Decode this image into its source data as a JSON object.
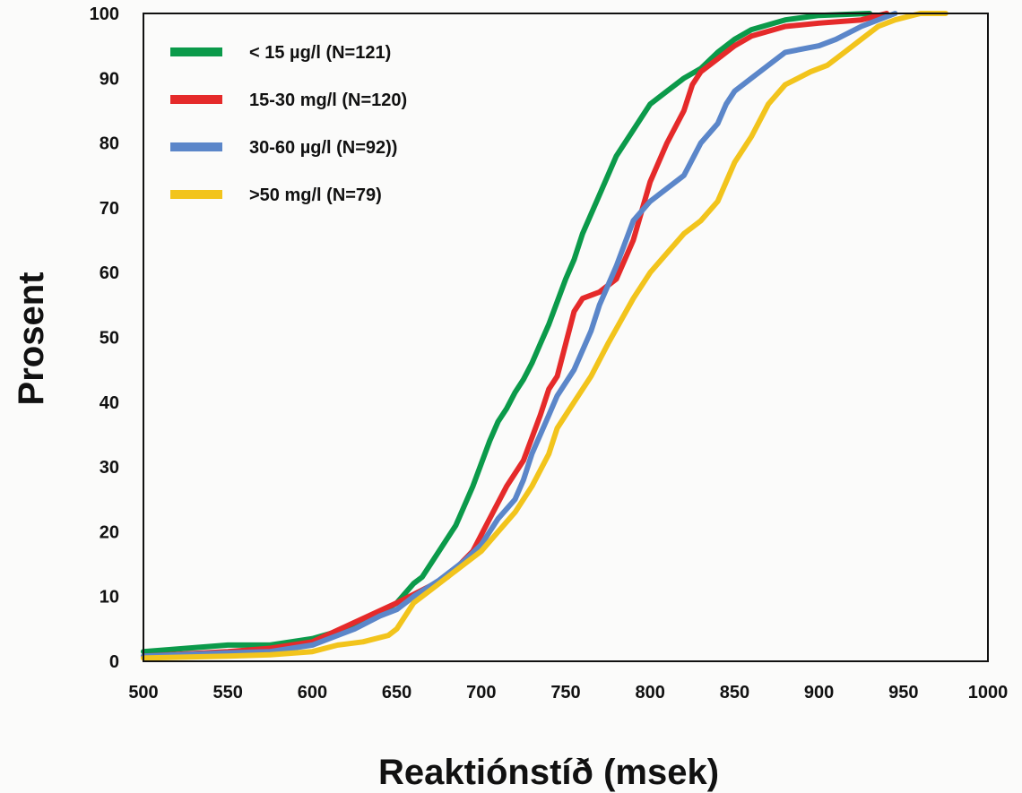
{
  "chart_data": {
    "type": "line",
    "title": "",
    "xlabel": "Reaktiónstíð (msek)",
    "ylabel": "Prosent",
    "xlim": [
      500,
      1000
    ],
    "ylim": [
      0,
      100
    ],
    "x_ticks": [
      500,
      550,
      600,
      650,
      700,
      750,
      800,
      850,
      900,
      950,
      1000
    ],
    "y_ticks": [
      0,
      10,
      20,
      30,
      40,
      50,
      60,
      70,
      80,
      90,
      100
    ],
    "grid": false,
    "legend_position": "top-left",
    "series": [
      {
        "name": "< 15 µg/l (N=121)",
        "color": "#0b9a4a",
        "points": [
          [
            500,
            1.5
          ],
          [
            550,
            2.5
          ],
          [
            575,
            2.5
          ],
          [
            600,
            3.5
          ],
          [
            620,
            5
          ],
          [
            640,
            7.5
          ],
          [
            650,
            9
          ],
          [
            660,
            12
          ],
          [
            665,
            13
          ],
          [
            675,
            17
          ],
          [
            685,
            21
          ],
          [
            695,
            27
          ],
          [
            705,
            34
          ],
          [
            710,
            37
          ],
          [
            715,
            39
          ],
          [
            720,
            41.5
          ],
          [
            725,
            43.5
          ],
          [
            730,
            46
          ],
          [
            735,
            49
          ],
          [
            740,
            52
          ],
          [
            745,
            55.5
          ],
          [
            750,
            59
          ],
          [
            755,
            62
          ],
          [
            760,
            66
          ],
          [
            770,
            72
          ],
          [
            780,
            78
          ],
          [
            790,
            82
          ],
          [
            800,
            86
          ],
          [
            810,
            88
          ],
          [
            820,
            90
          ],
          [
            830,
            91.5
          ],
          [
            840,
            94
          ],
          [
            850,
            96
          ],
          [
            860,
            97.5
          ],
          [
            880,
            99
          ],
          [
            900,
            99.7
          ],
          [
            930,
            100
          ]
        ]
      },
      {
        "name": "15-30 mg/l (N=120)",
        "color": "#e52a2a",
        "points": [
          [
            500,
            0.8
          ],
          [
            550,
            1.5
          ],
          [
            575,
            2
          ],
          [
            600,
            3
          ],
          [
            625,
            6
          ],
          [
            650,
            9
          ],
          [
            665,
            11
          ],
          [
            680,
            13
          ],
          [
            695,
            17
          ],
          [
            705,
            22
          ],
          [
            715,
            27
          ],
          [
            725,
            31
          ],
          [
            735,
            38
          ],
          [
            740,
            42
          ],
          [
            745,
            44
          ],
          [
            750,
            49
          ],
          [
            755,
            54
          ],
          [
            760,
            56
          ],
          [
            770,
            57
          ],
          [
            780,
            59
          ],
          [
            790,
            65
          ],
          [
            800,
            74
          ],
          [
            810,
            80
          ],
          [
            820,
            85
          ],
          [
            825,
            89
          ],
          [
            830,
            91
          ],
          [
            840,
            93
          ],
          [
            850,
            95
          ],
          [
            860,
            96.5
          ],
          [
            880,
            98
          ],
          [
            900,
            98.5
          ],
          [
            925,
            99
          ],
          [
            940,
            100
          ]
        ]
      },
      {
        "name": "30-60 µg/l (N=92))",
        "color": "#5b86c9",
        "points": [
          [
            500,
            0.8
          ],
          [
            550,
            1.3
          ],
          [
            575,
            1.5
          ],
          [
            600,
            2.5
          ],
          [
            625,
            5
          ],
          [
            640,
            7
          ],
          [
            650,
            8
          ],
          [
            660,
            10
          ],
          [
            675,
            12.5
          ],
          [
            690,
            15.5
          ],
          [
            700,
            18
          ],
          [
            710,
            22
          ],
          [
            720,
            25
          ],
          [
            725,
            28
          ],
          [
            730,
            32
          ],
          [
            740,
            38
          ],
          [
            745,
            41
          ],
          [
            755,
            45
          ],
          [
            765,
            51
          ],
          [
            770,
            55
          ],
          [
            780,
            61
          ],
          [
            790,
            68
          ],
          [
            800,
            71
          ],
          [
            810,
            73
          ],
          [
            820,
            75
          ],
          [
            830,
            80
          ],
          [
            840,
            83
          ],
          [
            845,
            86
          ],
          [
            850,
            88
          ],
          [
            860,
            90
          ],
          [
            870,
            92
          ],
          [
            880,
            94
          ],
          [
            900,
            95
          ],
          [
            910,
            96
          ],
          [
            925,
            98
          ],
          [
            945,
            100
          ]
        ]
      },
      {
        "name": ">50 mg/l (N=79)",
        "color": "#f2c41c",
        "points": [
          [
            500,
            0.5
          ],
          [
            550,
            0.8
          ],
          [
            575,
            1
          ],
          [
            600,
            1.5
          ],
          [
            615,
            2.5
          ],
          [
            630,
            3
          ],
          [
            645,
            4
          ],
          [
            650,
            5
          ],
          [
            660,
            9
          ],
          [
            670,
            11
          ],
          [
            680,
            13
          ],
          [
            690,
            15
          ],
          [
            700,
            17
          ],
          [
            710,
            20
          ],
          [
            720,
            23
          ],
          [
            730,
            27
          ],
          [
            740,
            32
          ],
          [
            745,
            36
          ],
          [
            755,
            40
          ],
          [
            765,
            44
          ],
          [
            775,
            49
          ],
          [
            790,
            56
          ],
          [
            800,
            60
          ],
          [
            810,
            63
          ],
          [
            820,
            66
          ],
          [
            830,
            68
          ],
          [
            840,
            71
          ],
          [
            845,
            74
          ],
          [
            850,
            77
          ],
          [
            860,
            81
          ],
          [
            870,
            86
          ],
          [
            880,
            89
          ],
          [
            895,
            91
          ],
          [
            905,
            92
          ],
          [
            915,
            94
          ],
          [
            925,
            96
          ],
          [
            935,
            98
          ],
          [
            945,
            99
          ],
          [
            960,
            100
          ],
          [
            975,
            100
          ]
        ]
      }
    ]
  }
}
